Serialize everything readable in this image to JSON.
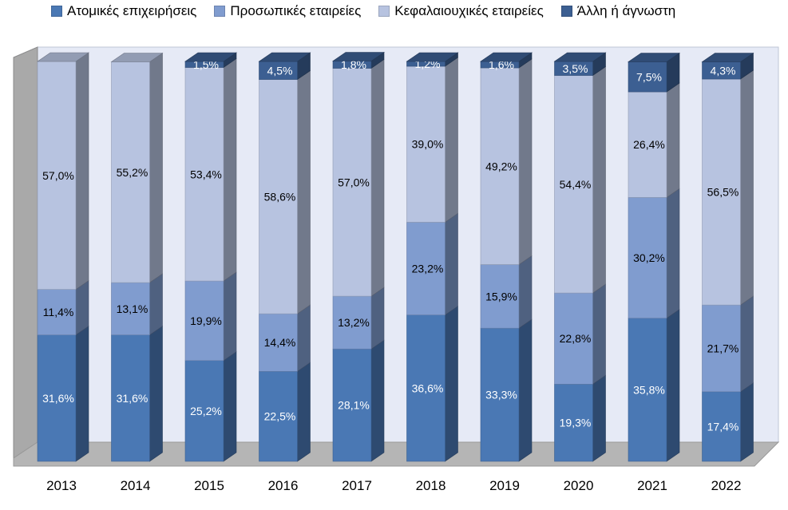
{
  "chart_data": {
    "type": "bar",
    "stacked": true,
    "three_d": true,
    "categories": [
      "2013",
      "2014",
      "2015",
      "2016",
      "2017",
      "2018",
      "2019",
      "2020",
      "2021",
      "2022"
    ],
    "series": [
      {
        "name": "Ατομικές επιχειρήσεις",
        "color": "#4a78b4",
        "values": [
          31.6,
          31.6,
          25.2,
          22.5,
          28.1,
          36.6,
          33.3,
          19.3,
          35.8,
          17.4
        ],
        "labels": [
          "31,6%",
          "31,6%",
          "25,2%",
          "22,5%",
          "28,1%",
          "36,6%",
          "33,3%",
          "19,3%",
          "35,8%",
          "17,4%"
        ],
        "label_color": "#ffffff"
      },
      {
        "name": "Προσωπικές εταιρείες",
        "color": "#809ccf",
        "values": [
          11.4,
          13.1,
          19.9,
          14.4,
          13.2,
          23.2,
          15.9,
          22.8,
          30.2,
          21.7
        ],
        "labels": [
          "11,4%",
          "13,1%",
          "19,9%",
          "14,4%",
          "13,2%",
          "23,2%",
          "15,9%",
          "22,8%",
          "30,2%",
          "21,7%"
        ],
        "label_color": "#000000"
      },
      {
        "name": "Κεφαλαιουχικές εταιρείες",
        "color": "#b7c3e0",
        "values": [
          57.0,
          55.2,
          53.4,
          58.6,
          57.0,
          39.0,
          49.2,
          54.4,
          26.4,
          56.5
        ],
        "labels": [
          "57,0%",
          "55,2%",
          "53,4%",
          "58,6%",
          "57,0%",
          "39,0%",
          "49,2%",
          "54,4%",
          "26,4%",
          "56,5%"
        ],
        "label_color": "#000000"
      },
      {
        "name": "Άλλη ή άγνωστη",
        "color": "#3c5f92",
        "values": [
          0,
          0,
          1.5,
          4.5,
          1.8,
          1.2,
          1.6,
          3.5,
          7.5,
          4.3
        ],
        "labels": [
          "",
          "",
          "1,5%",
          "4,5%",
          "1,8%",
          "1,2%",
          "1,6%",
          "3,5%",
          "7,5%",
          "4,3%"
        ],
        "label_color": "#ffffff"
      }
    ],
    "ylim": [
      0,
      100
    ],
    "grid": false,
    "legend_position": "top"
  }
}
